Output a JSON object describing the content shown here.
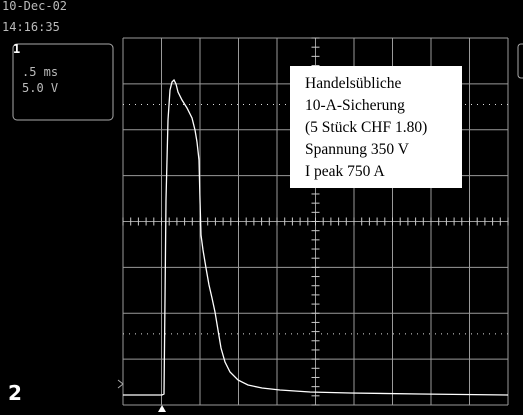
{
  "header": {
    "date": "10-Dec-02",
    "time": "14:16:35"
  },
  "channel_panel": {
    "marker": "1",
    "timebase": ".5 ms",
    "volts": "5.0 V"
  },
  "annotation": {
    "lines": [
      "Handelsübliche",
      "10-A-Sicherung",
      "(5 Stück CHF 1.80)",
      "Spannung 350 V",
      "I peak 750 A"
    ]
  },
  "footer": {
    "channel": "2"
  }
}
